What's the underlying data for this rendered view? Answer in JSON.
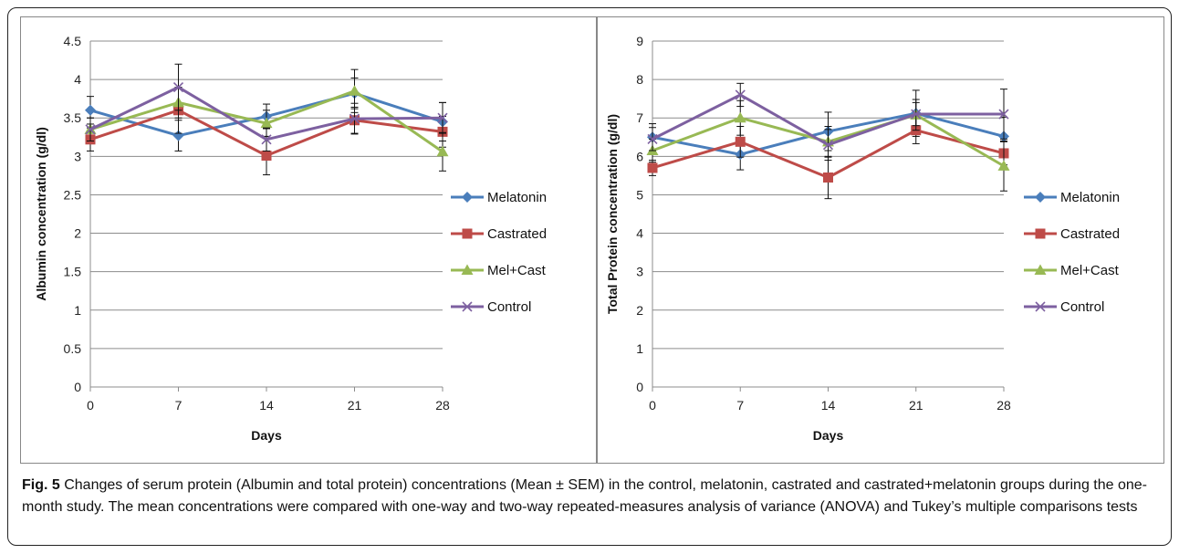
{
  "chart_data": [
    {
      "type": "line",
      "x": [
        0,
        7,
        14,
        21,
        28
      ],
      "xlabel": "Days",
      "ylabel": "Albumin concentration (g/dl)",
      "ylim": [
        0,
        4.5
      ],
      "yticks": [
        "0",
        "0.5",
        "1",
        "1.5",
        "2",
        "2.5",
        "3",
        "3.5",
        "4",
        "4.5"
      ],
      "xticks": [
        "0",
        "7",
        "14",
        "21",
        "28"
      ],
      "grid": "horizontal",
      "legend_position": "right",
      "series": [
        {
          "name": "Melatonin",
          "values": [
            3.6,
            3.27,
            3.52,
            3.82,
            3.45
          ],
          "errors": [
            0.18,
            0.2,
            0.16,
            0.2,
            0.25
          ],
          "color": "#4a7ebb",
          "marker": "diamond"
        },
        {
          "name": "Castrated",
          "values": [
            3.22,
            3.6,
            3.01,
            3.47,
            3.32
          ],
          "errors": [
            0.15,
            0.3,
            0.25,
            0.17,
            0.2
          ],
          "color": "#be4b48",
          "marker": "square"
        },
        {
          "name": "Mel+Cast",
          "values": [
            3.35,
            3.7,
            3.43,
            3.85,
            3.06
          ],
          "errors": [
            0.15,
            0.2,
            0.17,
            0.28,
            0.25
          ],
          "color": "#98b954",
          "marker": "triangle"
        },
        {
          "name": "Control",
          "values": [
            3.35,
            3.9,
            3.22,
            3.49,
            3.5
          ],
          "errors": [
            0.15,
            0.3,
            0.15,
            0.2,
            0.2
          ],
          "color": "#7d60a0",
          "marker": "x"
        }
      ]
    },
    {
      "type": "line",
      "x": [
        0,
        7,
        14,
        21,
        28
      ],
      "xlabel": "Days",
      "ylabel": "Total Protein concentration (g/dl)",
      "ylim": [
        0,
        9
      ],
      "yticks": [
        "0",
        "1",
        "2",
        "3",
        "4",
        "5",
        "6",
        "7",
        "8",
        "9"
      ],
      "xticks": [
        "0",
        "7",
        "14",
        "21",
        "28"
      ],
      "grid": "horizontal",
      "legend_position": "right",
      "series": [
        {
          "name": "Melatonin",
          "values": [
            6.5,
            6.05,
            6.65,
            7.12,
            6.52
          ],
          "errors": [
            0.35,
            0.4,
            0.5,
            0.6,
            0.5
          ],
          "color": "#4a7ebb",
          "marker": "diamond"
        },
        {
          "name": "Castrated",
          "values": [
            5.7,
            6.38,
            5.45,
            6.68,
            6.08
          ],
          "errors": [
            0.2,
            0.4,
            0.55,
            0.35,
            0.3
          ],
          "color": "#be4b48",
          "marker": "square"
        },
        {
          "name": "Mel+Cast",
          "values": [
            6.15,
            7.0,
            6.38,
            7.08,
            5.75
          ],
          "errors": [
            0.3,
            0.45,
            0.4,
            0.4,
            0.65
          ],
          "color": "#98b954",
          "marker": "triangle"
        },
        {
          "name": "Control",
          "values": [
            6.45,
            7.6,
            6.3,
            7.1,
            7.1
          ],
          "errors": [
            0.3,
            0.3,
            0.4,
            0.3,
            0.65
          ],
          "color": "#7d60a0",
          "marker": "x"
        }
      ]
    }
  ],
  "caption": {
    "label": "Fig. 5",
    "text": " Changes of serum protein (Albumin and total protein) concentrations (Mean ± SEM) in the control, melatonin, castrated and castrated+melatonin groups during the one-month study. The mean concentrations were compared with one-way and two-way repeated-measures analysis of variance (ANOVA) and Tukey’s multiple comparisons tests"
  }
}
